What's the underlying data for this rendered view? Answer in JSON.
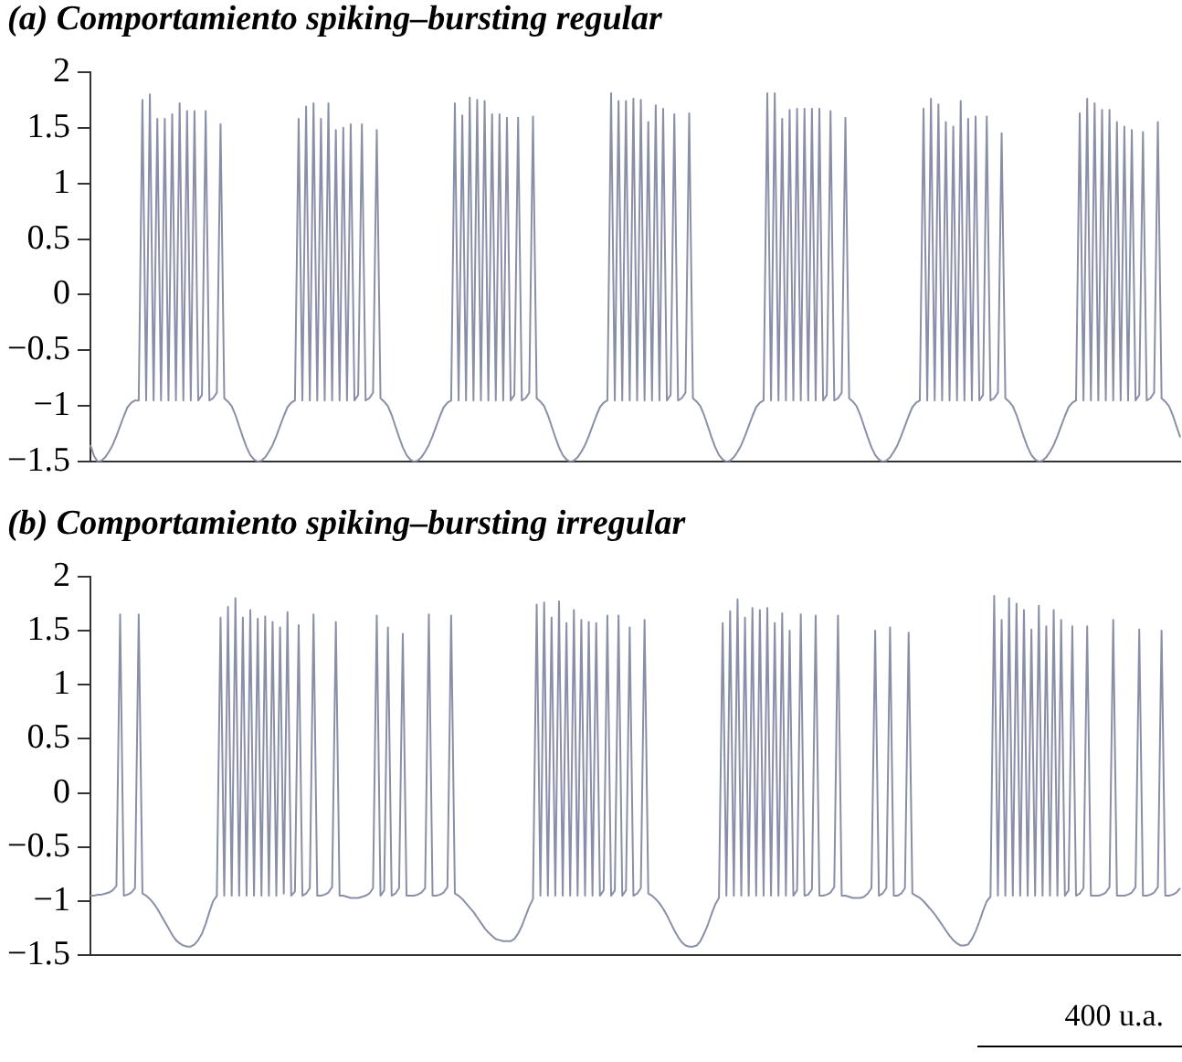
{
  "chart_data": [
    {
      "type": "line",
      "title": "(a) Comportamiento spiking–bursting regular",
      "grid": false,
      "legend": false,
      "tick_labels": "y",
      "marker": "none",
      "categories": [
        null,
        null,
        null,
        null,
        null,
        null,
        null,
        null,
        null,
        null,
        null,
        null,
        null,
        null,
        null,
        null,
        null,
        null,
        null,
        null,
        null,
        null,
        null,
        null,
        null,
        null,
        null,
        null,
        null,
        null,
        null,
        null,
        null,
        null,
        null,
        null,
        null,
        null,
        null,
        null,
        null,
        null,
        null,
        null,
        null,
        null,
        null,
        null,
        null,
        null,
        null,
        null,
        null,
        null,
        null,
        null,
        null,
        null,
        null,
        null,
        null,
        null,
        null,
        null,
        null,
        null,
        null,
        null,
        null,
        null,
        null,
        null,
        null,
        null,
        null,
        null,
        null,
        null,
        null,
        null,
        null,
        null,
        null,
        null,
        null,
        null,
        null,
        null,
        null,
        null,
        null,
        null,
        null,
        null,
        null,
        null,
        null,
        null,
        null,
        null,
        null,
        null,
        null,
        null,
        null,
        null,
        null,
        null,
        null,
        null,
        null,
        null,
        null,
        null,
        null,
        null,
        null,
        null,
        null,
        null,
        null,
        null,
        null,
        null,
        null,
        null,
        null,
        null,
        null,
        null,
        null,
        null,
        null,
        null,
        null,
        null,
        null,
        null,
        null,
        null,
        null,
        null,
        null,
        null,
        null,
        null,
        null,
        null,
        null,
        null,
        null,
        null,
        null,
        null,
        null,
        null,
        null,
        null,
        null,
        null,
        null,
        null,
        null,
        null,
        null,
        null,
        null,
        null,
        null,
        null,
        null,
        null,
        null,
        null,
        null,
        null,
        null,
        null,
        null,
        null,
        null,
        null,
        null,
        null,
        null,
        null,
        null,
        null,
        null,
        null,
        null,
        null,
        null,
        null,
        null,
        null,
        null,
        null,
        null,
        null,
        null,
        null,
        null,
        null,
        null,
        null,
        null,
        null,
        null,
        null,
        null,
        null,
        null,
        null,
        null,
        null,
        null,
        null,
        null,
        null,
        null,
        null,
        null,
        null,
        null,
        null,
        null,
        null,
        null,
        null,
        null,
        null,
        null,
        null,
        null,
        null,
        null,
        null,
        null,
        null,
        null,
        null,
        null,
        null,
        null,
        null,
        null,
        null,
        null,
        null,
        null,
        null,
        null,
        null,
        null,
        null,
        null,
        null,
        null,
        null,
        null,
        null,
        null,
        null,
        null,
        null,
        null,
        null,
        null,
        null,
        null,
        null,
        null,
        null,
        null,
        null,
        null,
        null,
        null,
        null,
        null,
        null,
        null,
        null,
        null,
        null,
        null,
        null,
        null,
        null,
        null,
        null,
        null,
        null
      ],
      "ylim": [
        -1.5,
        2
      ],
      "yticks": [
        {
          "value": -1.5,
          "label": "−1.5"
        },
        {
          "value": -1,
          "label": "−1"
        },
        {
          "value": -0.5,
          "label": "−0.5"
        },
        0,
        0.5,
        1,
        1.5,
        2
      ],
      "series": [
        {
          "color": "#8a8fa8",
          "values": [
            -1.35,
            -1.45,
            -1.5,
            -1.49,
            -1.46,
            -1.41,
            -1.35,
            -1.27,
            -1.18,
            -1.09,
            -1.01,
            -0.97,
            -0.95,
            -0.95,
            1.75,
            -0.95,
            1.8,
            -0.95,
            1.58,
            -0.95,
            1.58,
            -0.95,
            1.62,
            -0.95,
            1.72,
            -0.95,
            1.65,
            -0.95,
            1.65,
            -0.95,
            -0.9,
            1.65,
            -0.95,
            -0.93,
            -0.88,
            1.53,
            -0.93,
            -0.96,
            -1.0,
            -1.08,
            -1.18,
            -1.28,
            -1.37,
            -1.44,
            -1.48,
            -1.5,
            -1.49,
            -1.46,
            -1.41,
            -1.35,
            -1.27,
            -1.18,
            -1.09,
            -1.01,
            -0.97,
            -0.95,
            1.58,
            -0.95,
            1.69,
            -0.95,
            1.72,
            -0.95,
            1.58,
            -0.95,
            1.72,
            -0.95,
            1.48,
            -0.95,
            1.5,
            -0.95,
            1.53,
            -0.95,
            -0.9,
            1.53,
            -0.95,
            -0.93,
            -0.88,
            1.48,
            -0.93,
            -0.96,
            -1.0,
            -1.08,
            -1.18,
            -1.28,
            -1.37,
            -1.44,
            -1.48,
            -1.5,
            -1.49,
            -1.46,
            -1.41,
            -1.35,
            -1.27,
            -1.18,
            -1.09,
            -1.01,
            -0.97,
            -0.95,
            1.72,
            -0.95,
            1.61,
            -0.95,
            1.77,
            -0.95,
            1.75,
            -0.95,
            1.74,
            -0.95,
            1.62,
            -0.95,
            1.62,
            -0.95,
            1.59,
            -0.95,
            -0.9,
            1.59,
            -0.95,
            -0.93,
            -0.88,
            1.6,
            -0.93,
            -0.96,
            -1.0,
            -1.08,
            -1.18,
            -1.28,
            -1.37,
            -1.44,
            -1.48,
            -1.5,
            -1.49,
            -1.46,
            -1.41,
            -1.35,
            -1.27,
            -1.18,
            -1.09,
            -1.01,
            -0.97,
            -0.95,
            1.81,
            -0.95,
            1.74,
            -0.95,
            1.74,
            -0.95,
            1.76,
            -0.95,
            1.75,
            -0.95,
            1.55,
            -0.95,
            1.7,
            -0.95,
            1.67,
            -0.95,
            -0.9,
            1.62,
            -0.95,
            -0.93,
            -0.88,
            1.63,
            -0.93,
            -0.96,
            -1.0,
            -1.08,
            -1.18,
            -1.28,
            -1.37,
            -1.44,
            -1.48,
            -1.5,
            -1.49,
            -1.46,
            -1.41,
            -1.35,
            -1.27,
            -1.18,
            -1.09,
            -1.01,
            -0.97,
            -0.95,
            1.81,
            -0.95,
            1.81,
            -0.95,
            1.58,
            -0.95,
            1.66,
            -0.95,
            1.67,
            -0.95,
            1.67,
            -0.95,
            1.67,
            -0.95,
            1.67,
            -0.95,
            -0.9,
            1.65,
            -0.95,
            -0.93,
            -0.88,
            1.59,
            -0.93,
            -0.96,
            -1.0,
            -1.08,
            -1.18,
            -1.28,
            -1.37,
            -1.44,
            -1.48,
            -1.5,
            -1.49,
            -1.46,
            -1.41,
            -1.35,
            -1.27,
            -1.18,
            -1.09,
            -1.01,
            -0.97,
            -0.95,
            1.67,
            -0.95,
            1.76,
            -0.95,
            1.71,
            -0.95,
            1.55,
            -0.95,
            1.51,
            -0.95,
            1.74,
            -0.95,
            1.58,
            -0.95,
            1.6,
            -0.95,
            -0.9,
            1.6,
            -0.95,
            -0.93,
            -0.88,
            1.45,
            -0.93,
            -0.96,
            -1.0,
            -1.08,
            -1.18,
            -1.28,
            -1.37,
            -1.44,
            -1.48,
            -1.5,
            -1.49,
            -1.46,
            -1.41,
            -1.35,
            -1.27,
            -1.18,
            -1.09,
            -1.01,
            -0.97,
            -0.95,
            1.63,
            -0.95,
            1.76,
            -0.95,
            1.72,
            -0.95,
            1.66,
            -0.95,
            1.66,
            -0.95,
            1.55,
            -0.95,
            1.51,
            -0.95,
            1.48,
            -0.95,
            -0.9,
            1.46,
            -0.95,
            -0.93,
            -0.88,
            1.55,
            -0.93,
            -0.96,
            -1.0,
            -1.08,
            -1.18,
            -1.28
          ]
        }
      ]
    },
    {
      "type": "line",
      "title": "(b) Comportamiento spiking–bursting irregular",
      "grid": false,
      "legend": false,
      "tick_labels": "y",
      "marker": "none",
      "categories": [
        null,
        null,
        null,
        null,
        null,
        null,
        null,
        null,
        null,
        null,
        null,
        null,
        null,
        null,
        null,
        null,
        null,
        null,
        null,
        null,
        null,
        null,
        null,
        null,
        null,
        null,
        null,
        null,
        null,
        null,
        null,
        null,
        null,
        null,
        null,
        null,
        null,
        null,
        null,
        null,
        null,
        null,
        null,
        null,
        null,
        null,
        null,
        null,
        null,
        null,
        null,
        null,
        null,
        null,
        null,
        null,
        null,
        null,
        null,
        null,
        null,
        null,
        null,
        null,
        null,
        null,
        null,
        null,
        null,
        null,
        null,
        null,
        null,
        null,
        null,
        null,
        null,
        null,
        null,
        null,
        null,
        null,
        null,
        null,
        null,
        null,
        null,
        null,
        null,
        null,
        null,
        null,
        null,
        null,
        null,
        null,
        null,
        null,
        null,
        null,
        null,
        null,
        null,
        null,
        null,
        null,
        null,
        null,
        null,
        null,
        null,
        null,
        null,
        null,
        null,
        null,
        null,
        null,
        null,
        null,
        null,
        null,
        null,
        null,
        null,
        null,
        null,
        null,
        null,
        null,
        null,
        null,
        null,
        null,
        null,
        null,
        null,
        null,
        null,
        null,
        null,
        null,
        null,
        null,
        null,
        null,
        null,
        null,
        null,
        null,
        null,
        null,
        null,
        null,
        null,
        null,
        null,
        null,
        null,
        null,
        null,
        null,
        null,
        null,
        null,
        null,
        null,
        null,
        null,
        null,
        null,
        null,
        null,
        null,
        null,
        null,
        null,
        null,
        null,
        null,
        null,
        null,
        null,
        null,
        null,
        null,
        null,
        null,
        null,
        null,
        null,
        null,
        null,
        null,
        null,
        null,
        null,
        null,
        null,
        null,
        null,
        null,
        null,
        null,
        null,
        null,
        null,
        null,
        null,
        null,
        null,
        null,
        null,
        null,
        null,
        null,
        null,
        null,
        null,
        null,
        null,
        null,
        null,
        null,
        null,
        null,
        null,
        null,
        null,
        null,
        null,
        null,
        null,
        null,
        null,
        null,
        null,
        null,
        null,
        null,
        null,
        null,
        null,
        null,
        null,
        null,
        null,
        null,
        null,
        null,
        null,
        null,
        null,
        null,
        null,
        null,
        null,
        null,
        null,
        null,
        null,
        null,
        null,
        null,
        null,
        null,
        null,
        null,
        null,
        null,
        null,
        null,
        null,
        null,
        null,
        null,
        null,
        null,
        null,
        null,
        null,
        null,
        null,
        null,
        null,
        null,
        null,
        null,
        null,
        null,
        null,
        null,
        null,
        null
      ],
      "ylim": [
        -1.5,
        2
      ],
      "yticks": [
        {
          "value": -1.5,
          "label": "−1.5"
        },
        {
          "value": -1,
          "label": "−1"
        },
        {
          "value": -0.5,
          "label": "−0.5"
        },
        0,
        0.5,
        1,
        1.5,
        2
      ],
      "annotations": [
        "400 u.a."
      ],
      "series": [
        {
          "color": "#8a8fa8",
          "values": [
            -0.95,
            -0.95,
            -0.94,
            -0.94,
            -0.93,
            -0.92,
            -0.9,
            -0.86,
            1.65,
            -0.95,
            -0.94,
            -0.92,
            -0.88,
            1.65,
            -0.93,
            -0.95,
            -0.98,
            -1.02,
            -1.07,
            -1.13,
            -1.19,
            -1.25,
            -1.31,
            -1.36,
            -1.39,
            -1.41,
            -1.42,
            -1.42,
            -1.4,
            -1.36,
            -1.3,
            -1.21,
            -1.1,
            -1.0,
            -0.95,
            1.62,
            -0.95,
            1.72,
            -0.95,
            1.8,
            -0.95,
            1.62,
            -0.95,
            1.69,
            -0.95,
            1.61,
            -0.95,
            1.63,
            -0.95,
            1.58,
            -0.95,
            1.53,
            -0.93,
            1.67,
            -0.95,
            -0.91,
            1.55,
            -0.95,
            -0.93,
            -0.88,
            1.65,
            -0.95,
            -0.95,
            -0.94,
            -0.92,
            -0.87,
            1.58,
            -0.95,
            -0.95,
            -0.96,
            -0.97,
            -0.97,
            -0.97,
            -0.96,
            -0.95,
            -0.93,
            -0.88,
            1.64,
            -0.95,
            -0.9,
            1.53,
            -0.95,
            -0.93,
            -0.88,
            1.47,
            -0.95,
            -0.95,
            -0.95,
            -0.94,
            -0.92,
            -0.88,
            1.65,
            -0.95,
            -0.95,
            -0.94,
            -0.92,
            -0.87,
            1.64,
            -0.93,
            -0.95,
            -0.98,
            -1.02,
            -1.06,
            -1.1,
            -1.15,
            -1.2,
            -1.25,
            -1.29,
            -1.32,
            -1.35,
            -1.36,
            -1.37,
            -1.37,
            -1.37,
            -1.35,
            -1.3,
            -1.23,
            -1.14,
            -1.05,
            -0.98,
            1.74,
            -0.95,
            1.76,
            -0.95,
            1.62,
            -0.95,
            1.77,
            -0.95,
            1.57,
            -0.95,
            1.69,
            -0.95,
            1.6,
            -0.95,
            1.58,
            -0.95,
            1.57,
            -0.95,
            -0.9,
            1.64,
            -0.95,
            -0.9,
            1.64,
            -0.95,
            -0.9,
            1.53,
            -0.95,
            -0.93,
            -0.88,
            1.6,
            -0.93,
            -0.95,
            -0.98,
            -1.02,
            -1.07,
            -1.13,
            -1.2,
            -1.27,
            -1.33,
            -1.38,
            -1.41,
            -1.42,
            -1.42,
            -1.41,
            -1.37,
            -1.3,
            -1.22,
            -1.12,
            -1.03,
            -0.97,
            1.57,
            -0.95,
            1.68,
            -0.95,
            1.79,
            -0.95,
            1.62,
            -0.95,
            1.71,
            -0.95,
            1.69,
            -0.95,
            1.71,
            -0.95,
            1.57,
            -0.95,
            1.66,
            -0.95,
            1.5,
            -0.95,
            -0.9,
            1.65,
            -0.95,
            -0.94,
            -0.89,
            1.64,
            -0.95,
            -0.95,
            -0.94,
            -0.92,
            -0.87,
            1.64,
            -0.95,
            -0.95,
            -0.96,
            -0.97,
            -0.97,
            -0.97,
            -0.96,
            -0.93,
            -0.88,
            1.5,
            -0.95,
            -0.93,
            -0.88,
            1.53,
            -0.95,
            -0.95,
            -0.93,
            -0.88,
            1.48,
            -0.93,
            -0.95,
            -0.97,
            -1.0,
            -1.04,
            -1.08,
            -1.12,
            -1.17,
            -1.22,
            -1.27,
            -1.32,
            -1.36,
            -1.39,
            -1.41,
            -1.41,
            -1.4,
            -1.35,
            -1.28,
            -1.19,
            -1.09,
            -1.0,
            -0.96,
            1.82,
            -0.95,
            1.6,
            -0.95,
            1.8,
            -0.95,
            1.75,
            -0.95,
            1.69,
            -0.95,
            1.51,
            -0.95,
            1.73,
            -0.95,
            1.54,
            -0.95,
            1.69,
            -0.95,
            1.6,
            -0.95,
            -0.9,
            1.54,
            -0.95,
            -0.93,
            -0.88,
            1.54,
            -0.95,
            -0.95,
            -0.95,
            -0.94,
            -0.92,
            -0.87,
            1.6,
            -0.95,
            -0.95,
            -0.95,
            -0.94,
            -0.92,
            -0.87,
            1.51,
            -0.95,
            -0.95,
            -0.94,
            -0.92,
            -0.87,
            1.5,
            -0.95,
            -0.95,
            -0.94,
            -0.92,
            -0.88
          ]
        }
      ]
    }
  ]
}
